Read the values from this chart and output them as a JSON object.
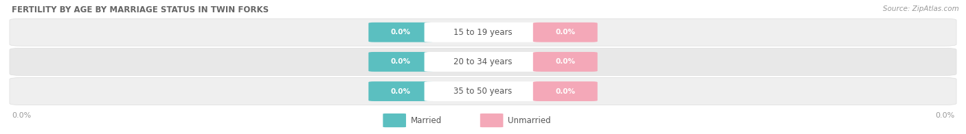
{
  "title": "FERTILITY BY AGE BY MARRIAGE STATUS IN TWIN FORKS",
  "source": "Source: ZipAtlas.com",
  "age_groups": [
    "15 to 19 years",
    "20 to 34 years",
    "35 to 50 years"
  ],
  "married_values": [
    0.0,
    0.0,
    0.0
  ],
  "unmarried_values": [
    0.0,
    0.0,
    0.0
  ],
  "married_color": "#5bbfc0",
  "unmarried_color": "#f4a8b8",
  "row_bg_color": "#e8e8e8",
  "row_bg_alt_color": "#efefef",
  "label_married": "Married",
  "label_unmarried": "Unmarried",
  "left_axis_label": "0.0%",
  "right_axis_label": "0.0%",
  "fig_width": 14.06,
  "fig_height": 1.96,
  "dpi": 100,
  "background_color": "#ffffff",
  "title_fontsize": 8.5,
  "source_fontsize": 7.5,
  "value_label_fontsize": 7.5,
  "age_label_fontsize": 8.5,
  "legend_fontsize": 8.5,
  "axis_label_fontsize": 8
}
